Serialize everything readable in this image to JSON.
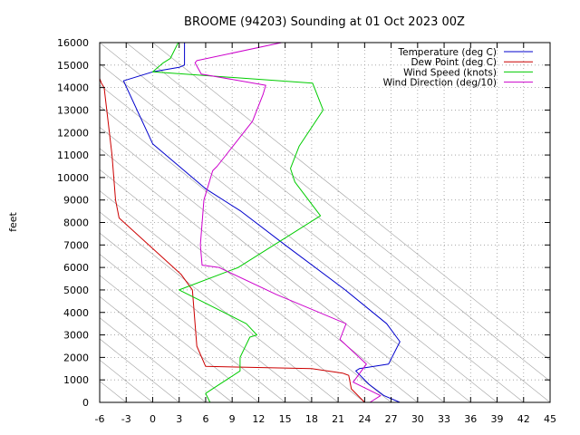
{
  "chart_data": {
    "type": "line",
    "title": "BROOME (94203) Sounding at 01 Oct 2023 00Z",
    "xlabel": "",
    "ylabel": "feet",
    "xlim": [
      -6,
      45
    ],
    "ylim": [
      0,
      16000
    ],
    "x_ticks": [
      -6,
      -3,
      0,
      3,
      6,
      9,
      12,
      15,
      18,
      21,
      24,
      27,
      30,
      33,
      36,
      39,
      42,
      45
    ],
    "y_ticks": [
      0,
      1000,
      2000,
      3000,
      4000,
      5000,
      6000,
      7000,
      8000,
      9000,
      10000,
      11000,
      12000,
      13000,
      14000,
      15000,
      16000
    ],
    "grid": true,
    "skewed_guides": true,
    "legend_position": "top-right",
    "series": [
      {
        "name": "Temperature (deg C)",
        "color": "#0000cc",
        "points": [
          [
            28,
            0
          ],
          [
            26.2,
            300
          ],
          [
            24.5,
            800
          ],
          [
            23,
            1400
          ],
          [
            23.4,
            1500
          ],
          [
            25.8,
            1650
          ],
          [
            26.7,
            1700
          ],
          [
            28,
            2700
          ],
          [
            26.5,
            3500
          ],
          [
            21.8,
            5000
          ],
          [
            15,
            7000
          ],
          [
            10,
            8500
          ],
          [
            6,
            9500
          ],
          [
            0,
            11500
          ],
          [
            -3.3,
            14300
          ],
          [
            0,
            14700
          ],
          [
            3,
            14900
          ],
          [
            3.6,
            15000
          ],
          [
            3.6,
            16000
          ]
        ]
      },
      {
        "name": "Dew Point (deg C)",
        "color": "#cc0000",
        "points": [
          [
            24,
            0
          ],
          [
            22.5,
            600
          ],
          [
            22.2,
            1200
          ],
          [
            21.5,
            1300
          ],
          [
            18,
            1500
          ],
          [
            6,
            1600
          ],
          [
            5,
            2500
          ],
          [
            4.5,
            5000
          ],
          [
            3.2,
            5700
          ],
          [
            -3.8,
            8200
          ],
          [
            -4.2,
            9000
          ],
          [
            -4.6,
            11000
          ],
          [
            -5.5,
            14000
          ],
          [
            -5.8,
            14200
          ],
          [
            -6,
            14400
          ]
        ]
      },
      {
        "name": "Wind Speed (knots)",
        "color": "#00cc00",
        "points": [
          [
            6.5,
            0
          ],
          [
            6,
            400
          ],
          [
            9.9,
            1400
          ],
          [
            9.9,
            2000
          ],
          [
            11,
            2900
          ],
          [
            11.8,
            3000
          ],
          [
            10.6,
            3500
          ],
          [
            3,
            5000
          ],
          [
            9.7,
            6000
          ],
          [
            19,
            8300
          ],
          [
            16.1,
            9800
          ],
          [
            15.6,
            10400
          ],
          [
            16.6,
            11400
          ],
          [
            19.3,
            13000
          ],
          [
            18.1,
            14200
          ],
          [
            0,
            14700
          ],
          [
            1.2,
            15100
          ],
          [
            2,
            15300
          ],
          [
            2.9,
            16000
          ]
        ]
      },
      {
        "name": "Wind Direction (deg/10)",
        "color": "#cc00cc",
        "points": [
          [
            11.8,
            0
          ],
          [
            24.6,
            0
          ],
          [
            25.8,
            300
          ],
          [
            22.7,
            900
          ],
          [
            24.2,
            1700
          ],
          [
            21.2,
            2800
          ],
          [
            21.9,
            3500
          ],
          [
            14,
            4800
          ],
          [
            7.5,
            6000
          ],
          [
            5.6,
            6100
          ],
          [
            5.4,
            7000
          ],
          [
            5.8,
            9000
          ],
          [
            6.8,
            10300
          ],
          [
            7.3,
            10500
          ],
          [
            11.3,
            12500
          ],
          [
            12.5,
            13700
          ],
          [
            12.8,
            14100
          ],
          [
            5.5,
            14600
          ],
          [
            4.8,
            15100
          ],
          [
            5,
            15200
          ],
          [
            14.6,
            16000
          ]
        ]
      }
    ]
  }
}
